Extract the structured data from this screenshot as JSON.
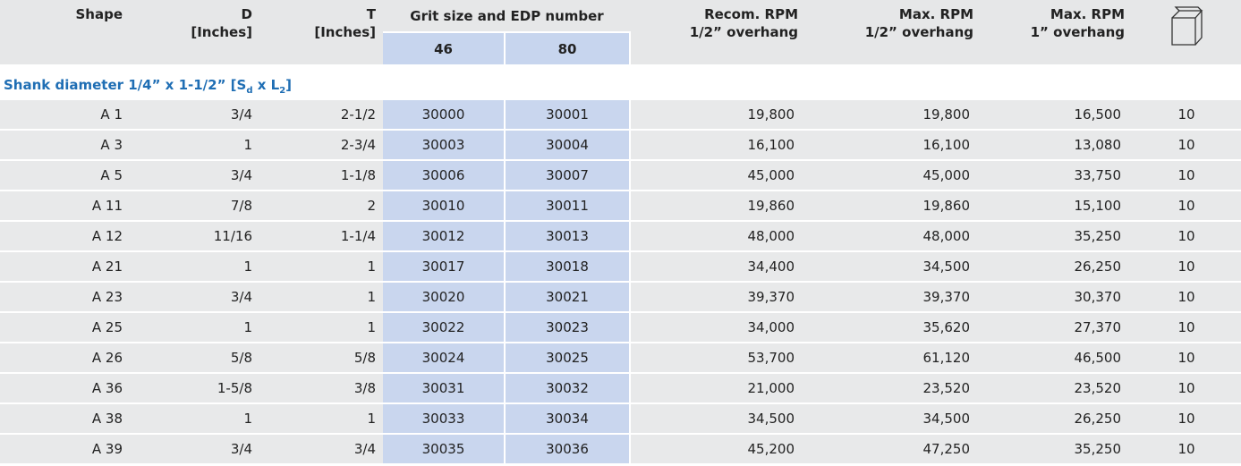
{
  "header": {
    "shape": "Shape",
    "d": [
      "D",
      "[Inches]"
    ],
    "t": [
      "T",
      "[Inches]"
    ],
    "grit": "Grit size and EDP number",
    "grits": [
      "46",
      "80"
    ],
    "recom": [
      "Recom. RPM",
      "1/2” overhang"
    ],
    "max_half": [
      "Max. RPM",
      "1/2” overhang"
    ],
    "max_one": [
      "Max. RPM",
      "1” overhang"
    ]
  },
  "section": [
    "Shank diameter 1/4” x 1-1/2” [S",
    "d",
    " x L",
    "2",
    "]"
  ],
  "rows": [
    [
      "A 1",
      "3/4",
      "2-1/2",
      "30000",
      "30001",
      "19,800",
      "19,800",
      "16,500",
      "10"
    ],
    [
      "A 3",
      "1",
      "2-3/4",
      "30003",
      "30004",
      "16,100",
      "16,100",
      "13,080",
      "10"
    ],
    [
      "A 5",
      "3/4",
      "1-1/8",
      "30006",
      "30007",
      "45,000",
      "45,000",
      "33,750",
      "10"
    ],
    [
      "A 11",
      "7/8",
      "2",
      "30010",
      "30011",
      "19,860",
      "19,860",
      "15,100",
      "10"
    ],
    [
      "A 12",
      "11/16",
      "1-1/4",
      "30012",
      "30013",
      "48,000",
      "48,000",
      "35,250",
      "10"
    ],
    [
      "A 21",
      "1",
      "1",
      "30017",
      "30018",
      "34,400",
      "34,500",
      "26,250",
      "10"
    ],
    [
      "A 23",
      "3/4",
      "1",
      "30020",
      "30021",
      "39,370",
      "39,370",
      "30,370",
      "10"
    ],
    [
      "A 25",
      "1",
      "1",
      "30022",
      "30023",
      "34,000",
      "35,620",
      "27,370",
      "10"
    ],
    [
      "A 26",
      "5/8",
      "5/8",
      "30024",
      "30025",
      "53,700",
      "61,120",
      "46,500",
      "10"
    ],
    [
      "A 36",
      "1-5/8",
      "3/8",
      "30031",
      "30032",
      "21,000",
      "23,520",
      "23,520",
      "10"
    ],
    [
      "A 38",
      "1",
      "1",
      "30033",
      "30034",
      "34,500",
      "34,500",
      "26,250",
      "10"
    ],
    [
      "A 39",
      "3/4",
      "3/4",
      "30035",
      "30036",
      "45,200",
      "47,250",
      "35,250",
      "10"
    ]
  ]
}
